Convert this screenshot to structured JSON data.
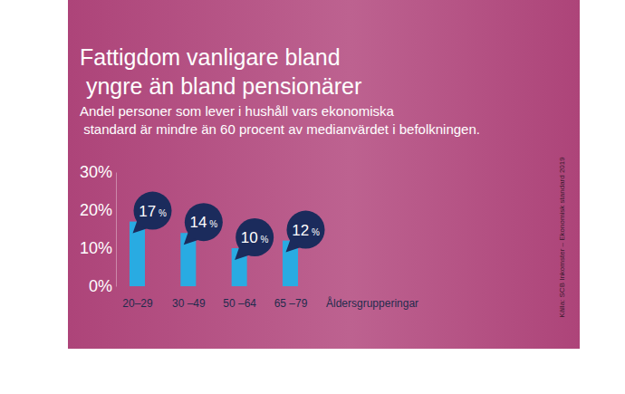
{
  "chart_data": {
    "type": "bar",
    "title": "Fattigdom vanligare bland yngre än bland pensionärer",
    "subtitle": "Andel personer som lever i hushåll vars ekonomiska standard är mindre än 60 procent av medianvärdet i befolkningen.",
    "x_label": "Åldersgrupperingar",
    "source": "Källa: SCB Inkomster – Ekonomisk standard 2019",
    "categories": [
      "20–29",
      "30 –49",
      "50 –64",
      "65 –79"
    ],
    "values": [
      17,
      14,
      10,
      12
    ],
    "value_labels": [
      "17 %",
      "14 %",
      "10 %",
      "12 %"
    ],
    "color": "#29abe2",
    "ylim": [
      0,
      30
    ],
    "yticks": [
      {
        "value": 0,
        "label": "0%"
      },
      {
        "value": 10,
        "label": "10%"
      },
      {
        "value": 20,
        "label": "20%"
      },
      {
        "value": 30,
        "label": "30%"
      }
    ],
    "grid": false,
    "data_labels": true
  }
}
